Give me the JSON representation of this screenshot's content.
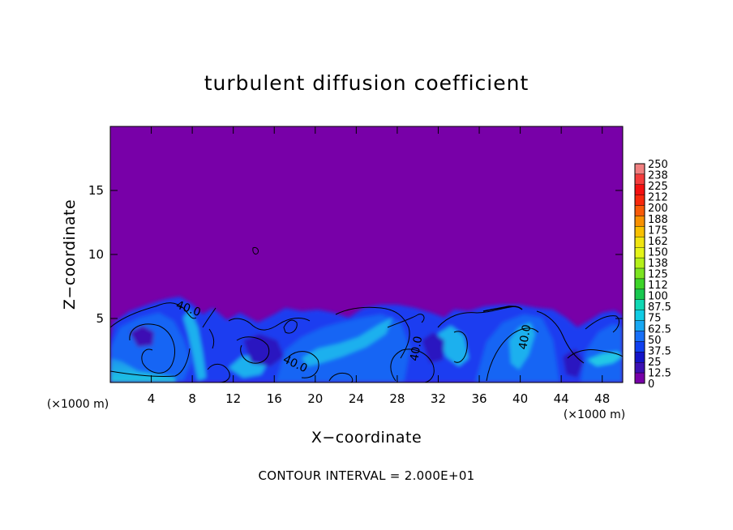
{
  "chart_data": {
    "type": "heatmap",
    "title": "turbulent diffusion coefficient",
    "xlabel": "X−coordinate",
    "ylabel": "Z−coordinate",
    "x_unit": "(×1000 m)",
    "z_unit": "(×1000 m)",
    "xlim": [
      0,
      50
    ],
    "ylim": [
      0,
      20
    ],
    "x_ticks": [
      4,
      8,
      12,
      16,
      20,
      24,
      28,
      32,
      36,
      40,
      44,
      48
    ],
    "y_ticks": [
      5,
      10,
      15
    ],
    "background_value": 0,
    "contour_labels": [
      {
        "text": "40.0",
        "x": 7.5,
        "z": 5.5,
        "rotate": 20
      },
      {
        "text": "40.0",
        "x": 30.2,
        "z": 2.6,
        "rotate": -80
      },
      {
        "text": "40.0",
        "x": 40.8,
        "z": 3.5,
        "rotate": -80
      },
      {
        "text": "40.0",
        "x": 17.9,
        "z": 1.2,
        "rotate": 25
      }
    ],
    "colorbar": {
      "labels": [
        "250",
        "238",
        "225",
        "212",
        "200",
        "188",
        "175",
        "162",
        "150",
        "138",
        "125",
        "112",
        "100",
        "87.5",
        "75",
        "62.5",
        "50",
        "37.5",
        "25",
        "12.5",
        "0"
      ],
      "colors": [
        "#f08080",
        "#f43c3c",
        "#f41010",
        "#f8280c",
        "#f85a08",
        "#f89000",
        "#f8c000",
        "#f0e410",
        "#e4f418",
        "#b4f018",
        "#7ce420",
        "#3cd428",
        "#18c850",
        "#10d8b4",
        "#10cce4",
        "#18a8f4",
        "#1870f8",
        "#1040f0",
        "#1414c8",
        "#3c10b4",
        "#7800a8"
      ]
    },
    "note": "CONTOUR INTERVAL = 2.000E+01"
  }
}
